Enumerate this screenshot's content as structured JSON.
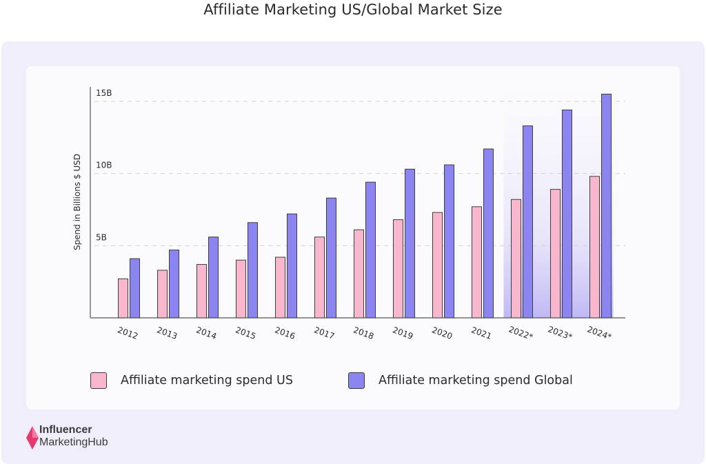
{
  "page": {
    "title": "Affiliate Marketing US/Global Market Size"
  },
  "brand": {
    "line1": "Influencer",
    "line2": "MarketingHub"
  },
  "chart_data": {
    "type": "bar",
    "title": "Affiliate Marketing US/Global Market Size",
    "xlabel": "",
    "ylabel": "Spend in Billions $ USD",
    "ylim": [
      0,
      16
    ],
    "yticks": [
      {
        "value": 5,
        "label": "5B"
      },
      {
        "value": 10,
        "label": "10B"
      },
      {
        "value": 15,
        "label": "15B"
      }
    ],
    "grid": true,
    "legend_position": "bottom",
    "categories": [
      "2012",
      "2013",
      "2014",
      "2015",
      "2016",
      "2017",
      "2018",
      "2019",
      "2020",
      "2021",
      "2022*",
      "2023*",
      "2024*"
    ],
    "highlighted_categories": [
      "2022*",
      "2023*",
      "2024*"
    ],
    "series": [
      {
        "name": "Affiliate marketing spend US",
        "color": "#f8b7cd",
        "values": [
          2.7,
          3.3,
          3.7,
          4.0,
          4.2,
          5.6,
          6.1,
          6.8,
          7.3,
          7.7,
          8.2,
          8.9,
          9.8
        ]
      },
      {
        "name": "Affiliate marketing spend Global",
        "color": "#8c84f1",
        "values": [
          4.1,
          4.7,
          5.6,
          6.6,
          7.2,
          8.3,
          9.4,
          10.3,
          10.6,
          11.7,
          13.3,
          14.4,
          15.5
        ]
      }
    ]
  }
}
